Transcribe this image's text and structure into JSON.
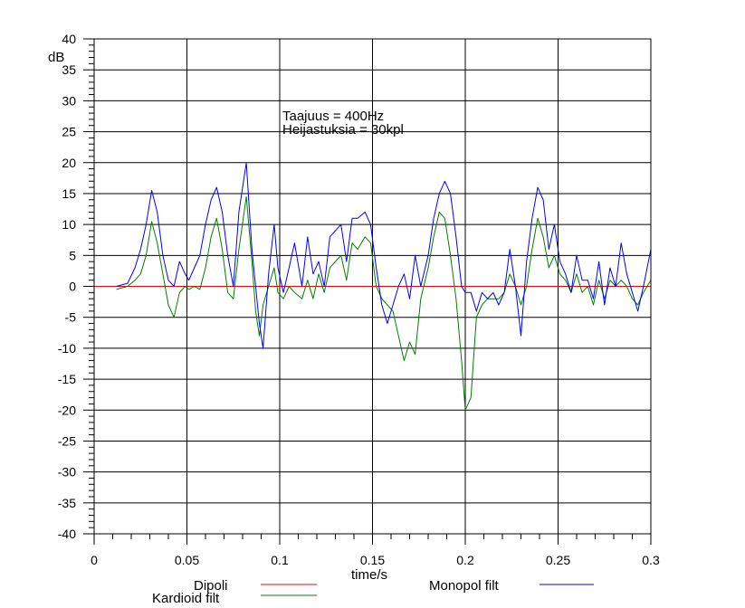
{
  "chart_data": {
    "type": "line",
    "title": "",
    "xlabel": "time/s",
    "ylabel": "dB",
    "xlim": [
      0,
      0.3
    ],
    "ylim": [
      -40,
      40
    ],
    "x_ticks": [
      0,
      0.05,
      0.1,
      0.15,
      0.2,
      0.25,
      0.3
    ],
    "x_tick_labels": [
      "0",
      "0.05",
      "0.1",
      "0.15",
      "0.2",
      "0.25",
      "0.3"
    ],
    "y_ticks": [
      40,
      35,
      30,
      25,
      20,
      15,
      10,
      5,
      0,
      -5,
      -10,
      -15,
      -20,
      -25,
      -30,
      -35,
      -40
    ],
    "y_tick_labels": [
      "40",
      "35",
      "30",
      "25",
      "20",
      "15",
      "10",
      "5",
      "0",
      "-5",
      "-10",
      "-15",
      "-20",
      "-25",
      "-30",
      "-35",
      "-40"
    ],
    "grid": true,
    "annotations": [
      "Taajuus = 400Hz",
      "Heijastuksia = 30kpl"
    ],
    "legend_position": "bottom",
    "series": [
      {
        "name": "Dipoli",
        "color": "#ff0000",
        "x": [
          0,
          0.3
        ],
        "y": [
          0,
          0
        ]
      },
      {
        "name": "Monopol filt",
        "color": "#0000ff",
        "x": [
          0.012,
          0.018,
          0.022,
          0.025,
          0.028,
          0.031,
          0.034,
          0.037,
          0.04,
          0.043,
          0.046,
          0.049,
          0.051,
          0.054,
          0.057,
          0.06,
          0.063,
          0.066,
          0.069,
          0.072,
          0.075,
          0.078,
          0.082,
          0.085,
          0.087,
          0.089,
          0.091,
          0.094,
          0.097,
          0.099,
          0.102,
          0.105,
          0.108,
          0.112,
          0.115,
          0.118,
          0.121,
          0.124,
          0.127,
          0.13,
          0.133,
          0.136,
          0.139,
          0.142,
          0.146,
          0.149,
          0.152,
          0.155,
          0.158,
          0.161,
          0.164,
          0.167,
          0.17,
          0.173,
          0.176,
          0.18,
          0.183,
          0.186,
          0.189,
          0.192,
          0.195,
          0.198,
          0.2,
          0.203,
          0.206,
          0.209,
          0.212,
          0.215,
          0.218,
          0.221,
          0.224,
          0.227,
          0.23,
          0.233,
          0.236,
          0.239,
          0.242,
          0.245,
          0.248,
          0.251,
          0.254,
          0.257,
          0.26,
          0.263,
          0.266,
          0.269,
          0.272,
          0.275,
          0.278,
          0.281,
          0.284,
          0.287,
          0.29,
          0.293,
          0.296,
          0.3
        ],
        "y": [
          0,
          0.5,
          3,
          6,
          10,
          15.5,
          12,
          5,
          1,
          0,
          4,
          2,
          1,
          3,
          5,
          10,
          14,
          16,
          12,
          5,
          0,
          12,
          20,
          6,
          0,
          -6,
          -10,
          2,
          10,
          3,
          -1,
          3,
          7,
          0,
          8,
          2,
          4,
          0,
          8,
          9,
          10,
          4,
          11,
          11,
          12,
          10,
          3,
          -3,
          -6,
          -3,
          0,
          2,
          -2,
          5,
          0,
          5,
          11,
          15,
          17,
          15,
          8,
          0,
          -1,
          -1,
          -4,
          -1,
          -2,
          -1,
          -3,
          -1,
          6,
          0,
          -8,
          4,
          11,
          16,
          14,
          6,
          10,
          4,
          2,
          -1,
          5,
          1,
          1,
          -2,
          4,
          -3,
          3,
          0,
          7,
          2,
          -1,
          -4,
          0,
          6
        ]
      },
      {
        "name": "Kardioid filt",
        "color": "#008000",
        "x": [
          0.012,
          0.018,
          0.022,
          0.025,
          0.028,
          0.031,
          0.034,
          0.037,
          0.04,
          0.043,
          0.046,
          0.049,
          0.051,
          0.054,
          0.057,
          0.06,
          0.063,
          0.066,
          0.069,
          0.072,
          0.075,
          0.078,
          0.082,
          0.085,
          0.087,
          0.089,
          0.091,
          0.094,
          0.097,
          0.099,
          0.102,
          0.105,
          0.108,
          0.112,
          0.115,
          0.118,
          0.121,
          0.124,
          0.127,
          0.13,
          0.133,
          0.136,
          0.139,
          0.142,
          0.146,
          0.149,
          0.152,
          0.155,
          0.158,
          0.161,
          0.164,
          0.167,
          0.17,
          0.173,
          0.176,
          0.18,
          0.183,
          0.186,
          0.189,
          0.192,
          0.195,
          0.198,
          0.2,
          0.203,
          0.206,
          0.209,
          0.212,
          0.215,
          0.218,
          0.221,
          0.224,
          0.227,
          0.23,
          0.233,
          0.236,
          0.239,
          0.242,
          0.245,
          0.248,
          0.251,
          0.254,
          0.257,
          0.26,
          0.263,
          0.266,
          0.269,
          0.272,
          0.275,
          0.278,
          0.281,
          0.284,
          0.287,
          0.29,
          0.293,
          0.296,
          0.3
        ],
        "y": [
          -0.5,
          0,
          1,
          2,
          5,
          10.5,
          7,
          2,
          -3,
          -5,
          -1,
          0,
          -0.5,
          0,
          -0.5,
          3,
          8,
          11,
          6,
          -1,
          -2,
          6,
          14.5,
          4,
          -4,
          -8,
          -3,
          0,
          3,
          -1,
          -2,
          0,
          -1,
          -2,
          1,
          -2,
          2,
          -1,
          3,
          4,
          5,
          1,
          7,
          6,
          8,
          7,
          0,
          -2,
          -3,
          -4,
          -8,
          -12,
          -9,
          -11,
          -2,
          3,
          8,
          12,
          11,
          5,
          -2,
          -12,
          -20,
          -18,
          -5,
          -3,
          -2,
          -2,
          -2,
          -1,
          2,
          0,
          -3,
          0,
          6,
          11,
          8,
          3,
          5,
          2,
          1,
          -1,
          2,
          -1,
          0,
          -3,
          1,
          -2,
          1,
          0,
          1,
          0,
          -2,
          -3,
          -1,
          1
        ]
      }
    ]
  }
}
